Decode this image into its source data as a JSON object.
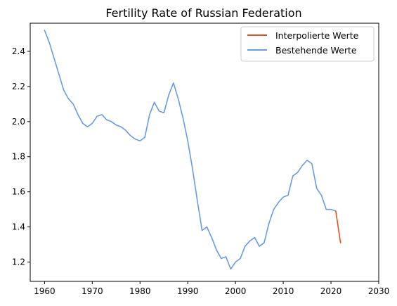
{
  "chart_data": {
    "type": "line",
    "title": "Fertility Rate of Russian Federation",
    "xlabel": "",
    "ylabel": "",
    "xlim": [
      1957,
      2030
    ],
    "ylim": [
      1.09,
      2.56
    ],
    "xticks": [
      1960,
      1970,
      1980,
      1990,
      2000,
      2010,
      2020,
      2030
    ],
    "yticks": [
      1.2,
      1.4,
      1.6,
      1.8,
      2.0,
      2.2,
      2.4
    ],
    "yticks_labels": [
      "1.2",
      "1.4",
      "1.6",
      "1.8",
      "2.0",
      "2.2",
      "2.4"
    ],
    "grid": false,
    "legend_position": "top-right",
    "series": [
      {
        "name": "Interpolierte Werte",
        "color": "#e6501e",
        "x": [
          2021,
          2022
        ],
        "y": [
          1.49,
          1.31
        ]
      },
      {
        "name": "Bestehende Werte",
        "color": "#6a9be0",
        "x": [
          1960,
          1961,
          1962,
          1963,
          1964,
          1965,
          1966,
          1967,
          1968,
          1969,
          1970,
          1971,
          1972,
          1973,
          1974,
          1975,
          1976,
          1977,
          1978,
          1979,
          1980,
          1981,
          1982,
          1983,
          1984,
          1985,
          1986,
          1987,
          1988,
          1989,
          1990,
          1991,
          1992,
          1993,
          1994,
          1995,
          1996,
          1997,
          1998,
          1999,
          2000,
          2001,
          2002,
          2003,
          2004,
          2005,
          2006,
          2007,
          2008,
          2009,
          2010,
          2011,
          2012,
          2013,
          2014,
          2015,
          2016,
          2017,
          2018,
          2019,
          2020,
          2021
        ],
        "y": [
          2.52,
          2.45,
          2.36,
          2.27,
          2.18,
          2.13,
          2.1,
          2.04,
          1.99,
          1.97,
          1.99,
          2.03,
          2.04,
          2.01,
          2.0,
          1.98,
          1.97,
          1.95,
          1.92,
          1.9,
          1.89,
          1.91,
          2.04,
          2.11,
          2.06,
          2.05,
          2.15,
          2.22,
          2.13,
          2.02,
          1.89,
          1.73,
          1.55,
          1.38,
          1.4,
          1.34,
          1.27,
          1.22,
          1.23,
          1.16,
          1.2,
          1.22,
          1.29,
          1.32,
          1.34,
          1.29,
          1.31,
          1.42,
          1.5,
          1.54,
          1.57,
          1.58,
          1.69,
          1.71,
          1.75,
          1.78,
          1.76,
          1.62,
          1.58,
          1.5,
          1.5,
          1.49
        ]
      }
    ]
  }
}
